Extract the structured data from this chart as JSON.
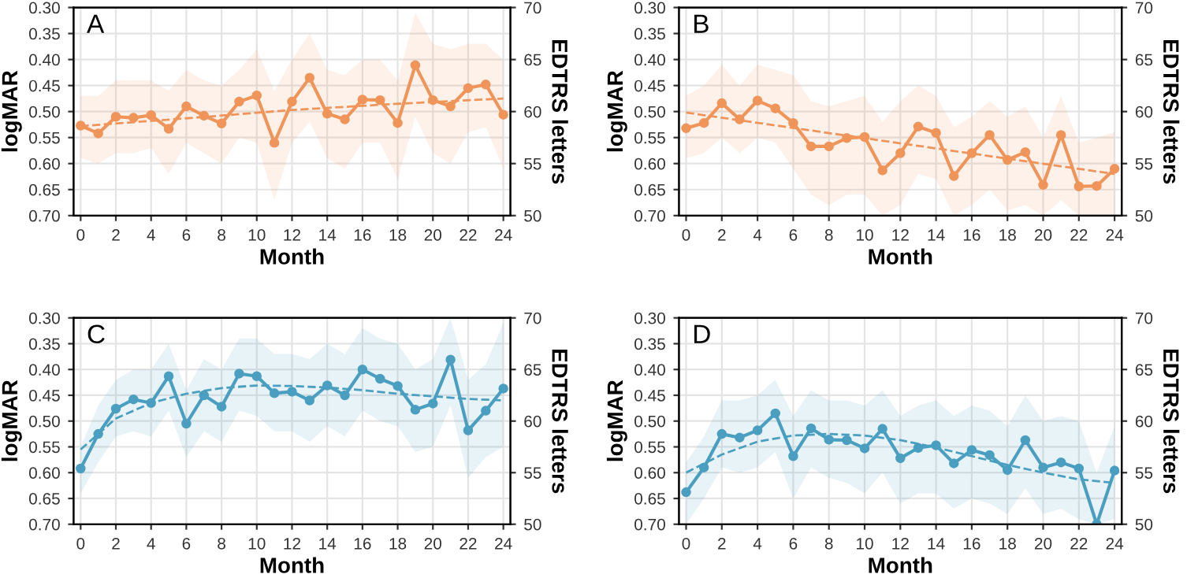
{
  "chart_data": [
    {
      "type": "line",
      "annotations": [
        "A"
      ],
      "xlabel": "Month",
      "ylabel": "logMAR",
      "y2label": "EDTRS letters",
      "xlim": [
        -0.4,
        24.4
      ],
      "xticks": [
        0,
        2,
        4,
        6,
        8,
        10,
        12,
        14,
        16,
        18,
        20,
        22,
        24
      ],
      "ylim": [
        0.7,
        0.3
      ],
      "yticks": [
        {
          "value": 0.3,
          "label": "0.30"
        },
        0.35,
        {
          "value": 0.4,
          "label": "0.40"
        },
        0.45,
        {
          "value": 0.5,
          "label": "0.50"
        },
        0.55,
        {
          "value": 0.6,
          "label": "0.60"
        },
        0.65,
        {
          "value": 0.7,
          "label": "0.70"
        }
      ],
      "y2lim": [
        50,
        70
      ],
      "y2ticks": [
        50,
        55,
        60,
        65,
        70
      ],
      "grid": true,
      "legend": false,
      "series": [
        {
          "color": "#f0955a",
          "marker": "circle",
          "line_style": "solid",
          "x": [
            0,
            1,
            2,
            3,
            4,
            5,
            6,
            7,
            8,
            9,
            10,
            11,
            12,
            13,
            14,
            15,
            16,
            17,
            18,
            19,
            20,
            21,
            22,
            23,
            24
          ],
          "values": [
            0.527,
            0.542,
            0.51,
            0.512,
            0.507,
            0.533,
            0.49,
            0.508,
            0.523,
            0.481,
            0.469,
            0.56,
            0.481,
            0.435,
            0.504,
            0.515,
            0.477,
            0.478,
            0.522,
            0.411,
            0.478,
            0.49,
            0.455,
            0.448,
            0.506
          ],
          "lower": [
            0.47,
            0.47,
            0.44,
            0.44,
            0.44,
            0.46,
            0.42,
            0.44,
            0.45,
            0.42,
            0.38,
            0.46,
            0.4,
            0.35,
            0.42,
            0.43,
            0.4,
            0.4,
            0.44,
            0.31,
            0.37,
            0.38,
            0.37,
            0.37,
            0.4
          ],
          "upper": [
            0.59,
            0.6,
            0.58,
            0.58,
            0.57,
            0.62,
            0.56,
            0.58,
            0.6,
            0.55,
            0.56,
            0.67,
            0.56,
            0.52,
            0.59,
            0.61,
            0.56,
            0.56,
            0.63,
            0.51,
            0.58,
            0.6,
            0.54,
            0.53,
            0.61
          ]
        },
        {
          "color": "#f0955a",
          "marker": "none",
          "line_style": "dashed",
          "x": [
            0,
            6,
            12,
            18,
            24
          ],
          "values": [
            0.528,
            0.513,
            0.497,
            0.485,
            0.475
          ]
        }
      ]
    },
    {
      "type": "line",
      "annotations": [
        "B"
      ],
      "xlabel": "Month",
      "ylabel": "logMAR",
      "y2label": "EDTRS letters",
      "xlim": [
        -0.4,
        24.4
      ],
      "xticks": [
        0,
        2,
        4,
        6,
        8,
        10,
        12,
        14,
        16,
        18,
        20,
        22,
        24
      ],
      "ylim": [
        0.7,
        0.3
      ],
      "yticks": [
        {
          "value": 0.3,
          "label": "0.30"
        },
        0.35,
        {
          "value": 0.4,
          "label": "0.40"
        },
        0.45,
        {
          "value": 0.5,
          "label": "0.50"
        },
        0.55,
        {
          "value": 0.6,
          "label": "0.60"
        },
        0.65,
        {
          "value": 0.7,
          "label": "0.70"
        }
      ],
      "y2lim": [
        50,
        70
      ],
      "y2ticks": [
        50,
        55,
        60,
        65,
        70
      ],
      "grid": true,
      "legend": false,
      "series": [
        {
          "color": "#f0955a",
          "marker": "circle",
          "line_style": "solid",
          "x": [
            0,
            1,
            2,
            3,
            4,
            5,
            6,
            7,
            8,
            9,
            10,
            11,
            12,
            13,
            14,
            15,
            16,
            17,
            18,
            19,
            20,
            21,
            22,
            23,
            24
          ],
          "values": [
            0.532,
            0.522,
            0.484,
            0.515,
            0.479,
            0.494,
            0.522,
            0.567,
            0.567,
            0.551,
            0.549,
            0.613,
            0.58,
            0.529,
            0.541,
            0.624,
            0.58,
            0.545,
            0.593,
            0.578,
            0.641,
            0.545,
            0.644,
            0.643,
            0.61
          ],
          "lower": [
            0.47,
            0.45,
            0.41,
            0.45,
            0.41,
            0.42,
            0.43,
            0.48,
            0.49,
            0.48,
            0.47,
            0.52,
            0.48,
            0.45,
            0.47,
            0.53,
            0.51,
            0.48,
            0.51,
            0.49,
            0.55,
            0.47,
            0.56,
            0.55,
            0.54
          ],
          "upper": [
            0.59,
            0.58,
            0.55,
            0.58,
            0.55,
            0.56,
            0.61,
            0.66,
            0.68,
            0.66,
            0.66,
            0.7,
            0.68,
            0.62,
            0.63,
            0.7,
            0.68,
            0.65,
            0.69,
            0.68,
            0.7,
            0.67,
            0.7,
            0.7,
            0.7
          ]
        },
        {
          "color": "#f0955a",
          "marker": "none",
          "line_style": "dashed",
          "x": [
            0,
            24
          ],
          "values": [
            0.502,
            0.62
          ]
        }
      ]
    },
    {
      "type": "line",
      "annotations": [
        "C"
      ],
      "xlabel": "Month",
      "ylabel": "logMAR",
      "y2label": "EDTRS letters",
      "xlim": [
        -0.4,
        24.4
      ],
      "xticks": [
        0,
        2,
        4,
        6,
        8,
        10,
        12,
        14,
        16,
        18,
        20,
        22,
        24
      ],
      "ylim": [
        0.7,
        0.3
      ],
      "yticks": [
        {
          "value": 0.3,
          "label": "0.30"
        },
        0.35,
        {
          "value": 0.4,
          "label": "0.40"
        },
        0.45,
        {
          "value": 0.5,
          "label": "0.50"
        },
        0.55,
        {
          "value": 0.6,
          "label": "0.60"
        },
        0.65,
        {
          "value": 0.7,
          "label": "0.70"
        }
      ],
      "y2lim": [
        50,
        70
      ],
      "y2ticks": [
        50,
        55,
        60,
        65,
        70
      ],
      "grid": true,
      "legend": false,
      "series": [
        {
          "color": "#4a9fc1",
          "marker": "circle",
          "line_style": "solid",
          "x": [
            0,
            1,
            2,
            3,
            4,
            5,
            6,
            7,
            8,
            9,
            10,
            11,
            12,
            13,
            14,
            15,
            16,
            17,
            18,
            19,
            20,
            21,
            22,
            23,
            24
          ],
          "values": [
            0.592,
            0.525,
            0.476,
            0.458,
            0.465,
            0.413,
            0.505,
            0.45,
            0.472,
            0.408,
            0.413,
            0.446,
            0.443,
            0.46,
            0.431,
            0.45,
            0.4,
            0.418,
            0.432,
            0.478,
            0.466,
            0.381,
            0.518,
            0.48,
            0.437
          ],
          "lower": [
            0.55,
            0.47,
            0.42,
            0.4,
            0.4,
            0.35,
            0.44,
            0.38,
            0.4,
            0.34,
            0.34,
            0.37,
            0.37,
            0.38,
            0.35,
            0.37,
            0.32,
            0.34,
            0.35,
            0.4,
            0.38,
            0.3,
            0.42,
            0.39,
            0.31
          ],
          "upper": [
            0.64,
            0.58,
            0.53,
            0.52,
            0.53,
            0.48,
            0.57,
            0.52,
            0.54,
            0.48,
            0.49,
            0.52,
            0.52,
            0.54,
            0.51,
            0.53,
            0.48,
            0.5,
            0.51,
            0.56,
            0.55,
            0.47,
            0.61,
            0.57,
            0.55
          ]
        },
        {
          "color": "#4a9fc1",
          "marker": "none",
          "line_style": "dashed",
          "x": [
            0,
            2,
            4,
            6,
            8,
            10,
            12,
            14,
            16,
            18,
            20,
            22,
            24
          ],
          "values": [
            0.555,
            0.495,
            0.465,
            0.447,
            0.436,
            0.431,
            0.432,
            0.435,
            0.44,
            0.447,
            0.452,
            0.457,
            0.46
          ]
        }
      ]
    },
    {
      "type": "line",
      "annotations": [
        "D"
      ],
      "xlabel": "Month",
      "ylabel": "logMAR",
      "y2label": "EDTRS letters",
      "xlim": [
        -0.4,
        24.4
      ],
      "xticks": [
        0,
        2,
        4,
        6,
        8,
        10,
        12,
        14,
        16,
        18,
        20,
        22,
        24
      ],
      "ylim": [
        0.7,
        0.3
      ],
      "yticks": [
        {
          "value": 0.3,
          "label": "0.30"
        },
        0.35,
        {
          "value": 0.4,
          "label": "0.40"
        },
        0.45,
        {
          "value": 0.5,
          "label": "0.50"
        },
        0.55,
        {
          "value": 0.6,
          "label": "0.60"
        },
        0.65,
        {
          "value": 0.7,
          "label": "0.70"
        }
      ],
      "y2lim": [
        50,
        70
      ],
      "y2ticks": [
        50,
        55,
        60,
        65,
        70
      ],
      "grid": true,
      "legend": false,
      "series": [
        {
          "color": "#4a9fc1",
          "marker": "circle",
          "line_style": "solid",
          "x": [
            0,
            1,
            2,
            3,
            4,
            5,
            6,
            7,
            8,
            9,
            10,
            11,
            12,
            13,
            14,
            15,
            16,
            17,
            18,
            19,
            20,
            21,
            22,
            23,
            24
          ],
          "values": [
            0.638,
            0.59,
            0.525,
            0.532,
            0.518,
            0.485,
            0.568,
            0.514,
            0.536,
            0.537,
            0.553,
            0.515,
            0.572,
            0.552,
            0.547,
            0.582,
            0.556,
            0.566,
            0.595,
            0.537,
            0.59,
            0.58,
            0.592,
            0.7,
            0.596
          ],
          "lower": [
            0.58,
            0.53,
            0.46,
            0.46,
            0.45,
            0.42,
            0.49,
            0.44,
            0.46,
            0.46,
            0.47,
            0.44,
            0.49,
            0.47,
            0.46,
            0.49,
            0.47,
            0.48,
            0.51,
            0.45,
            0.5,
            0.49,
            0.5,
            0.6,
            0.51
          ],
          "upper": [
            0.7,
            0.65,
            0.59,
            0.6,
            0.59,
            0.56,
            0.65,
            0.59,
            0.61,
            0.62,
            0.64,
            0.6,
            0.66,
            0.64,
            0.64,
            0.67,
            0.65,
            0.66,
            0.68,
            0.63,
            0.68,
            0.67,
            0.69,
            0.7,
            0.69
          ]
        },
        {
          "color": "#4a9fc1",
          "marker": "none",
          "line_style": "dashed",
          "x": [
            0,
            2,
            4,
            6,
            8,
            10,
            12,
            14,
            16,
            18,
            20,
            22,
            24
          ],
          "values": [
            0.6,
            0.565,
            0.54,
            0.528,
            0.525,
            0.528,
            0.537,
            0.551,
            0.568,
            0.585,
            0.6,
            0.613,
            0.62
          ]
        }
      ]
    }
  ]
}
